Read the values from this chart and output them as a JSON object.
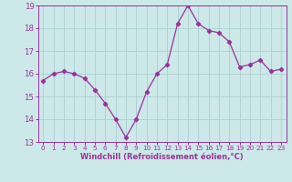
{
  "x": [
    0,
    1,
    2,
    3,
    4,
    5,
    6,
    7,
    8,
    9,
    10,
    11,
    12,
    13,
    14,
    15,
    16,
    17,
    18,
    19,
    20,
    21,
    22,
    23
  ],
  "y": [
    15.7,
    16.0,
    16.1,
    16.0,
    15.8,
    15.3,
    14.7,
    14.0,
    13.2,
    14.0,
    15.2,
    16.0,
    16.4,
    18.2,
    19.0,
    18.2,
    17.9,
    17.8,
    17.4,
    16.3,
    16.4,
    16.6,
    16.1,
    16.2
  ],
  "line_color": "#993399",
  "marker": "D",
  "marker_size": 2.2,
  "bg_color": "#cce8e8",
  "grid_color": "#aacfcf",
  "xlabel": "Windchill (Refroidissement éolien,°C)",
  "ylim": [
    13,
    19
  ],
  "xlim_min": -0.5,
  "xlim_max": 23.5,
  "xticks": [
    0,
    1,
    2,
    3,
    4,
    5,
    6,
    7,
    8,
    9,
    10,
    11,
    12,
    13,
    14,
    15,
    16,
    17,
    18,
    19,
    20,
    21,
    22,
    23
  ],
  "yticks": [
    13,
    14,
    15,
    16,
    17,
    18,
    19
  ],
  "tick_color": "#993399",
  "label_color": "#993399",
  "axis_color": "#993399",
  "xlabel_fontsize": 6.0,
  "xtick_fontsize": 5.2,
  "ytick_fontsize": 6.2
}
